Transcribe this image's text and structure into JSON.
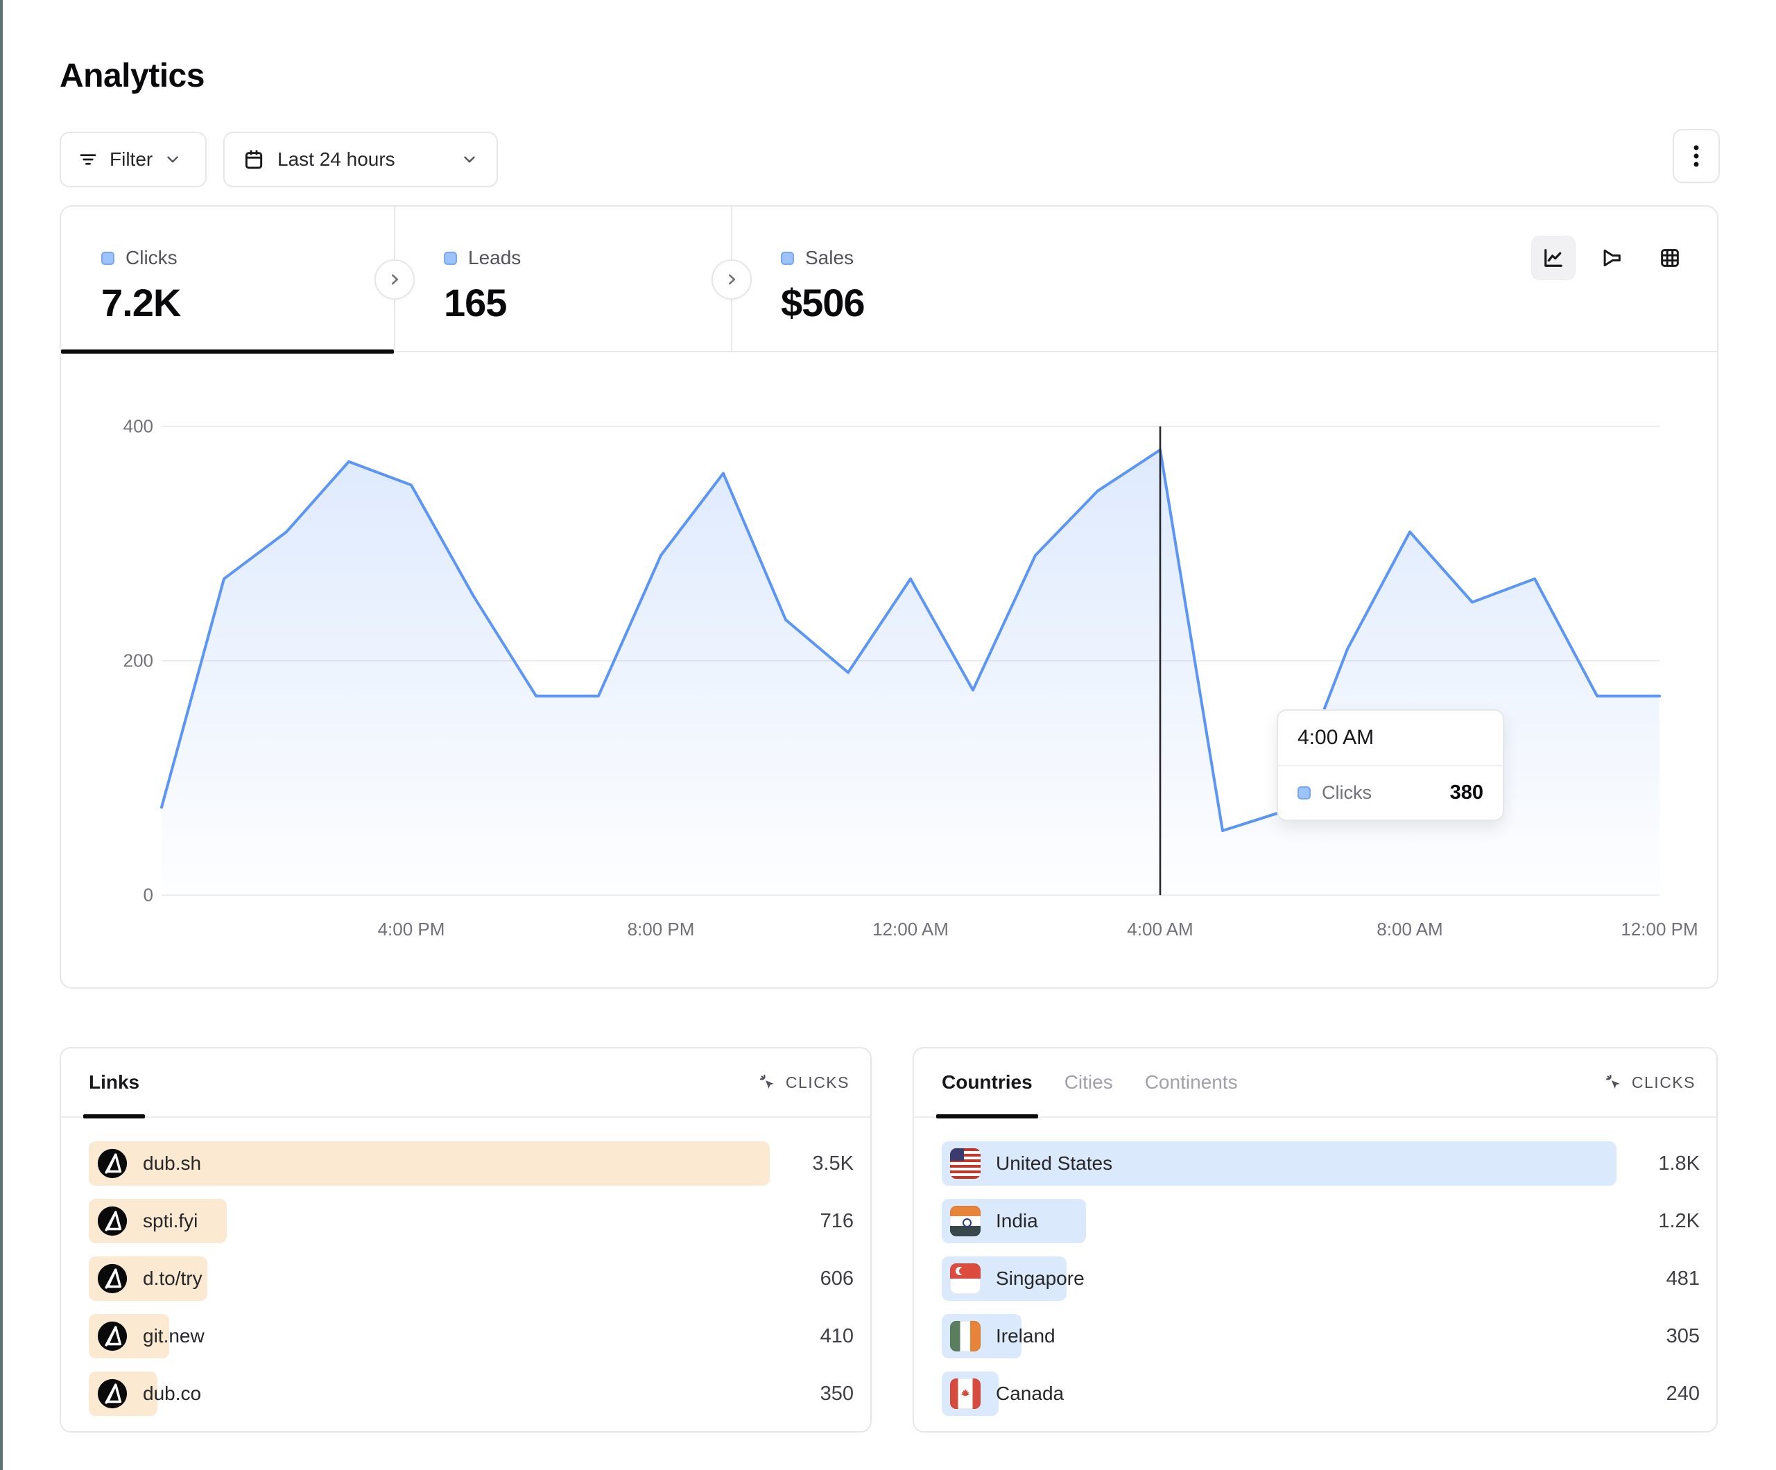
{
  "page": {
    "title": "Analytics"
  },
  "toolbar": {
    "filter_label": "Filter",
    "date_range_label": "Last 24 hours"
  },
  "stats": {
    "tabs": [
      {
        "label": "Clicks",
        "value": "7.2K",
        "active": true
      },
      {
        "label": "Leads",
        "value": "165",
        "active": false
      },
      {
        "label": "Sales",
        "value": "$506",
        "active": false
      }
    ]
  },
  "chart_data": {
    "type": "area",
    "series": [
      {
        "name": "Clicks",
        "values": [
          75,
          270,
          310,
          370,
          350,
          255,
          170,
          170,
          290,
          360,
          235,
          190,
          270,
          175,
          290,
          345,
          380,
          55,
          72,
          210,
          310,
          250,
          270,
          170,
          170
        ]
      }
    ],
    "x": [
      "12:00 PM",
      "1:00 PM",
      "2:00 PM",
      "3:00 PM",
      "4:00 PM",
      "5:00 PM",
      "6:00 PM",
      "7:00 PM",
      "8:00 PM",
      "9:00 PM",
      "10:00 PM",
      "11:00 PM",
      "12:00 AM",
      "1:00 AM",
      "2:00 AM",
      "3:00 AM",
      "4:00 AM",
      "5:00 AM",
      "6:00 AM",
      "7:00 AM",
      "8:00 AM",
      "9:00 AM",
      "10:00 AM",
      "11:00 AM",
      "12:00 PM"
    ],
    "x_tick_labels": [
      "4:00 PM",
      "8:00 PM",
      "12:00 AM",
      "4:00 AM",
      "8:00 AM",
      "12:00 PM"
    ],
    "y_ticks": [
      "0",
      "200",
      "400"
    ],
    "ylim": [
      0,
      430
    ],
    "grid": "horizontal",
    "legend_position": "none",
    "line_color": "#5b95f6",
    "crosshair_index": 16,
    "title": "",
    "xlabel": "",
    "ylabel": ""
  },
  "tooltip": {
    "time": "4:00 AM",
    "series_label": "Clicks",
    "value": "380"
  },
  "links_panel": {
    "tab_label": "Links",
    "metric_label": "CLICKS",
    "rows": [
      {
        "label": "dub.sh",
        "value": "3.5K",
        "bar_pct": 89
      },
      {
        "label": "spti.fyi",
        "value": "716",
        "bar_pct": 18
      },
      {
        "label": "d.to/try",
        "value": "606",
        "bar_pct": 15.5
      },
      {
        "label": "git.new",
        "value": "410",
        "bar_pct": 10.5
      },
      {
        "label": "dub.co",
        "value": "350",
        "bar_pct": 9
      }
    ],
    "bar_color": "#fce9d2"
  },
  "geo_panel": {
    "tabs": [
      {
        "label": "Countries",
        "active": true
      },
      {
        "label": "Cities",
        "active": false
      },
      {
        "label": "Continents",
        "active": false
      }
    ],
    "metric_label": "CLICKS",
    "rows": [
      {
        "label": "United States",
        "value": "1.8K",
        "bar_pct": 89,
        "flag": "us"
      },
      {
        "label": "India",
        "value": "1.2K",
        "bar_pct": 19,
        "flag": "in"
      },
      {
        "label": "Singapore",
        "value": "481",
        "bar_pct": 16.5,
        "flag": "sg"
      },
      {
        "label": "Ireland",
        "value": "305",
        "bar_pct": 10.5,
        "flag": "ie"
      },
      {
        "label": "Canada",
        "value": "240",
        "bar_pct": 7.5,
        "flag": "ca"
      }
    ],
    "bar_color": "#dbe9fc"
  },
  "colors": {
    "accent_blue": "#5b95f6",
    "chip_fill": "#9cc3fa",
    "chip_border": "#79a7f3"
  }
}
